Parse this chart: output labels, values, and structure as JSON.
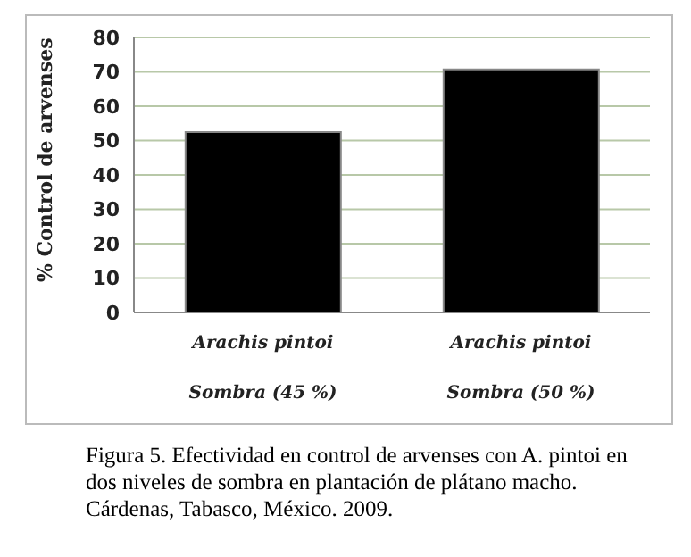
{
  "chart_data": {
    "type": "bar",
    "ylabel": "% Control de arvenses",
    "categories": [
      "Arachis pintoi\nSombra (45 %)",
      "Arachis pintoi\nSombra (50 %)"
    ],
    "values": [
      52.5,
      70.7
    ],
    "color": "#000000",
    "ylim": [
      0,
      80
    ],
    "yticks": [
      0,
      10,
      20,
      30,
      40,
      50,
      60,
      70,
      80
    ],
    "grid": "y",
    "annotations": [
      "Figura 5. Efectividad en control de arvenses con A. pintoi en dos niveles de sombra en plantación de plátano macho. Cárdenas, Tabasco, México. 2009."
    ]
  }
}
